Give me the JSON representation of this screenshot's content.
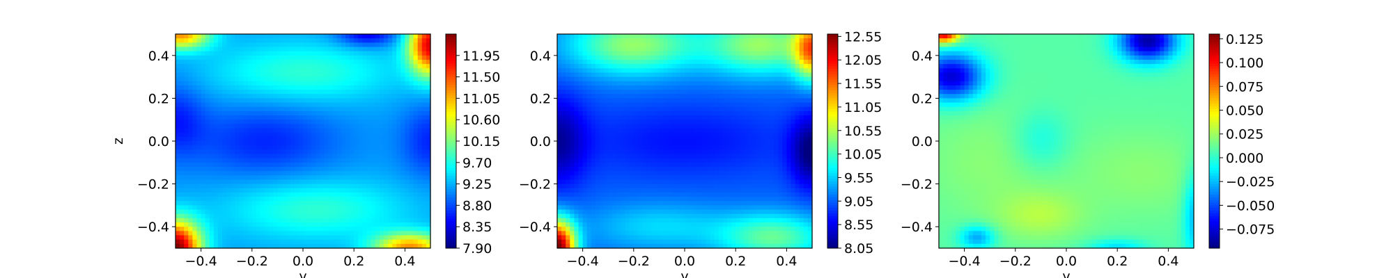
{
  "chart_data": [
    {
      "type": "heatmap",
      "title": "",
      "xlabel": "y",
      "ylabel": "z",
      "xlim": [
        -0.5,
        0.5
      ],
      "ylim": [
        -0.5,
        0.5
      ],
      "xticks": [
        "−0.4",
        "−0.2",
        "0.0",
        "0.2",
        "0.4"
      ],
      "yticks": [
        "−0.4",
        "−0.2",
        "0.0",
        "0.2",
        "0.4"
      ],
      "colormap": "jet",
      "color_range": [
        7.9,
        12.4
      ],
      "colorbar_ticks": [
        "7.90",
        "8.35",
        "8.80",
        "9.25",
        "9.70",
        "10.15",
        "10.60",
        "11.05",
        "11.50",
        "11.95"
      ],
      "field_description": "blue interior (~8.5-9.5) with hot corners; bottom-left and top-right reach ~12"
    },
    {
      "type": "heatmap",
      "title": "",
      "xlabel": "y",
      "ylabel": "",
      "xlim": [
        -0.5,
        0.5
      ],
      "ylim": [
        -0.5,
        0.5
      ],
      "xticks": [
        "−0.4",
        "−0.2",
        "0.0",
        "0.2",
        "0.4"
      ],
      "yticks": [
        "−0.4",
        "−0.2",
        "0.0",
        "0.2",
        "0.4"
      ],
      "colormap": "jet",
      "color_range": [
        8.05,
        12.6
      ],
      "colorbar_ticks": [
        "8.05",
        "8.55",
        "9.05",
        "9.55",
        "10.05",
        "10.55",
        "11.05",
        "11.55",
        "12.05",
        "12.55"
      ],
      "field_description": "dark blue center band; bottom-left corner hottest (~12.5)"
    },
    {
      "type": "heatmap",
      "title": "",
      "xlabel": "y",
      "ylabel": "",
      "xlim": [
        -0.5,
        0.5
      ],
      "ylim": [
        -0.5,
        0.5
      ],
      "xticks": [
        "−0.4",
        "−0.2",
        "0.0",
        "0.2",
        "0.4"
      ],
      "yticks": [
        "−0.4",
        "−0.2",
        "0.0",
        "0.2",
        "0.4"
      ],
      "colormap": "jet",
      "color_range": [
        -0.095,
        0.13
      ],
      "colorbar_ticks": [
        "−0.075",
        "−0.050",
        "−0.025",
        "0.000",
        "0.025",
        "0.050",
        "0.075",
        "0.100",
        "0.125"
      ],
      "field_description": "mostly near zero to slightly positive; dark blue lobes upper-left and top-right"
    }
  ]
}
